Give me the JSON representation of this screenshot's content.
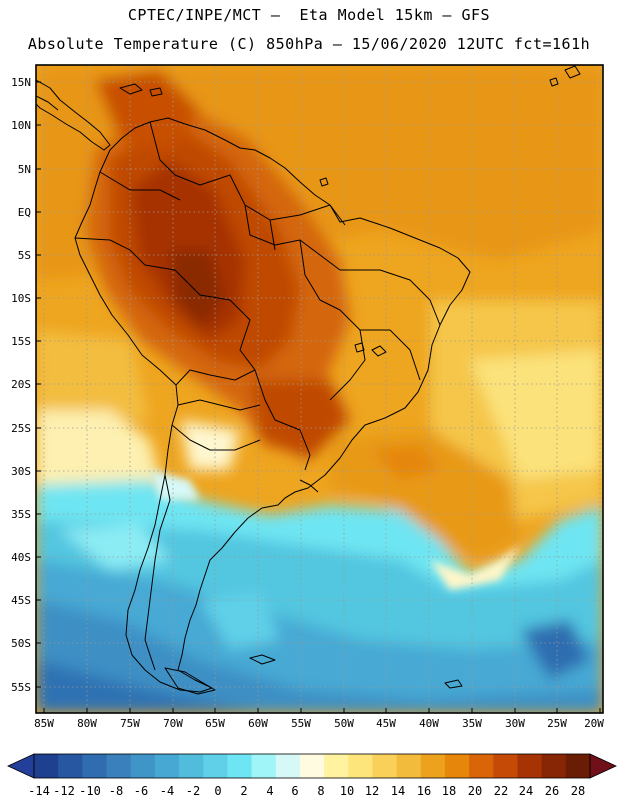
{
  "header": {
    "line1": "CPTEC/INPE/MCT –  Eta Model 15km – GFS",
    "line2": "Absolute Temperature (C) 850hPa – 15/06/2020 12UTC fct=161h"
  },
  "map": {
    "lat_labels": [
      "15N",
      "10N",
      "5N",
      "EQ",
      "5S",
      "10S",
      "15S",
      "20S",
      "25S",
      "30S",
      "35S",
      "40S",
      "45S",
      "50S",
      "55S"
    ],
    "lon_labels": [
      "85W",
      "80W",
      "75W",
      "70W",
      "65W",
      "60W",
      "55W",
      "50W",
      "45W",
      "40W",
      "35W",
      "30W",
      "25W",
      "20W"
    ]
  },
  "colorbar": {
    "labels": [
      "-14",
      "-12",
      "-10",
      "-8",
      "-6",
      "-4",
      "-2",
      "0",
      "2",
      "4",
      "6",
      "8",
      "10",
      "12",
      "14",
      "16",
      "18",
      "20",
      "22",
      "24",
      "26",
      "28"
    ],
    "colors": [
      "#1f3f8f",
      "#2657a0",
      "#2f6db0",
      "#3a80bc",
      "#3f95c8",
      "#46a8d3",
      "#52bcdd",
      "#5fd0e8",
      "#6ee5f2",
      "#9ff5f7",
      "#d6f8f7",
      "#fffbe0",
      "#fff3a0",
      "#fde57b",
      "#f8d05a",
      "#f2bb3c",
      "#eda21e",
      "#e6860a",
      "#d96508",
      "#c44a06",
      "#a63304",
      "#862605",
      "#6a1d05"
    ],
    "under_color": "#243f9a",
    "over_color": "#701018"
  }
}
